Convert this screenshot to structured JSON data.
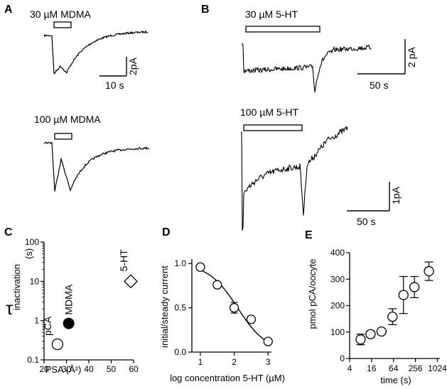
{
  "panels": {
    "A": {
      "letter": "A",
      "trace1_label": "30 µM MDMA",
      "trace2_label": "100 µM MDMA",
      "scale_y": "2pA",
      "scale_x": "10 s"
    },
    "B": {
      "letter": "B",
      "trace1_label": "30 µM 5-HT",
      "trace2_label": "100 µM 5-HT",
      "scale1_y": "2 pA",
      "scale1_x": "50 s",
      "scale2_y": "1pA",
      "scale2_x": "50 s"
    },
    "C": {
      "letter": "C"
    },
    "D": {
      "letter": "D"
    },
    "E": {
      "letter": "E"
    }
  },
  "chart_data": [
    {
      "panel": "C",
      "type": "scatter",
      "xlabel": "PSA (Å²)",
      "ylabel_symbol": "τ",
      "ylabel_sub": "inactivation",
      "ylabel_unit": "(s)",
      "xlim": [
        20,
        60
      ],
      "ylim": [
        0.1,
        100
      ],
      "ylog": true,
      "x_ticks": [
        20,
        30,
        40,
        50,
        60
      ],
      "y_ticks": [
        0.1,
        1,
        10,
        100
      ],
      "y_tick_labels": [
        "0.1",
        "1",
        "10",
        "100"
      ],
      "points": [
        {
          "name": "pCA",
          "label": "pCA",
          "x": 26,
          "y": 0.25,
          "marker": "open-circle"
        },
        {
          "name": "MDMA",
          "label": "MDMA",
          "x": 31,
          "y": 0.85,
          "marker": "filled-circle"
        },
        {
          "name": "5-HT",
          "label": "5-HT",
          "x": 60,
          "y": 10,
          "marker": "open-diamond"
        }
      ]
    },
    {
      "panel": "D",
      "type": "scatter",
      "xlabel": "log concentration 5-HT (µM)",
      "ylabel": "initial/steady current",
      "xlim": [
        0.75,
        3.1
      ],
      "ylim": [
        0,
        1.05
      ],
      "x_ticks": [
        1,
        2,
        3
      ],
      "y_ticks": [
        0.0,
        0.5,
        1.0
      ],
      "y_tick_labels": [
        "0.0",
        "0.5",
        "1.0"
      ],
      "x": [
        1,
        1.5,
        2,
        2.5,
        3
      ],
      "y": [
        0.96,
        0.76,
        0.5,
        0.37,
        0.12
      ],
      "err": [
        0,
        0,
        0.06,
        0,
        0
      ],
      "fit": {
        "type": "sigmoid",
        "top": 1.0,
        "bottom": 0.0,
        "logEC50": 2.1,
        "hill": -1.0,
        "x_from": 1,
        "x_to": 3
      }
    },
    {
      "panel": "E",
      "type": "scatter",
      "xlabel": "time (s)",
      "ylabel": "pmol pCA/oocyte",
      "xlog2": true,
      "xlim": [
        4,
        1200
      ],
      "ylim": [
        0,
        400
      ],
      "x_ticks": [
        4,
        16,
        64,
        256,
        1024
      ],
      "y_ticks": [
        0,
        100,
        200,
        300,
        400
      ],
      "x": [
        8,
        15,
        30,
        60,
        120,
        240,
        600
      ],
      "y": [
        72,
        92,
        102,
        158,
        240,
        270,
        330
      ],
      "err": [
        20,
        12,
        10,
        30,
        70,
        40,
        35
      ]
    }
  ]
}
